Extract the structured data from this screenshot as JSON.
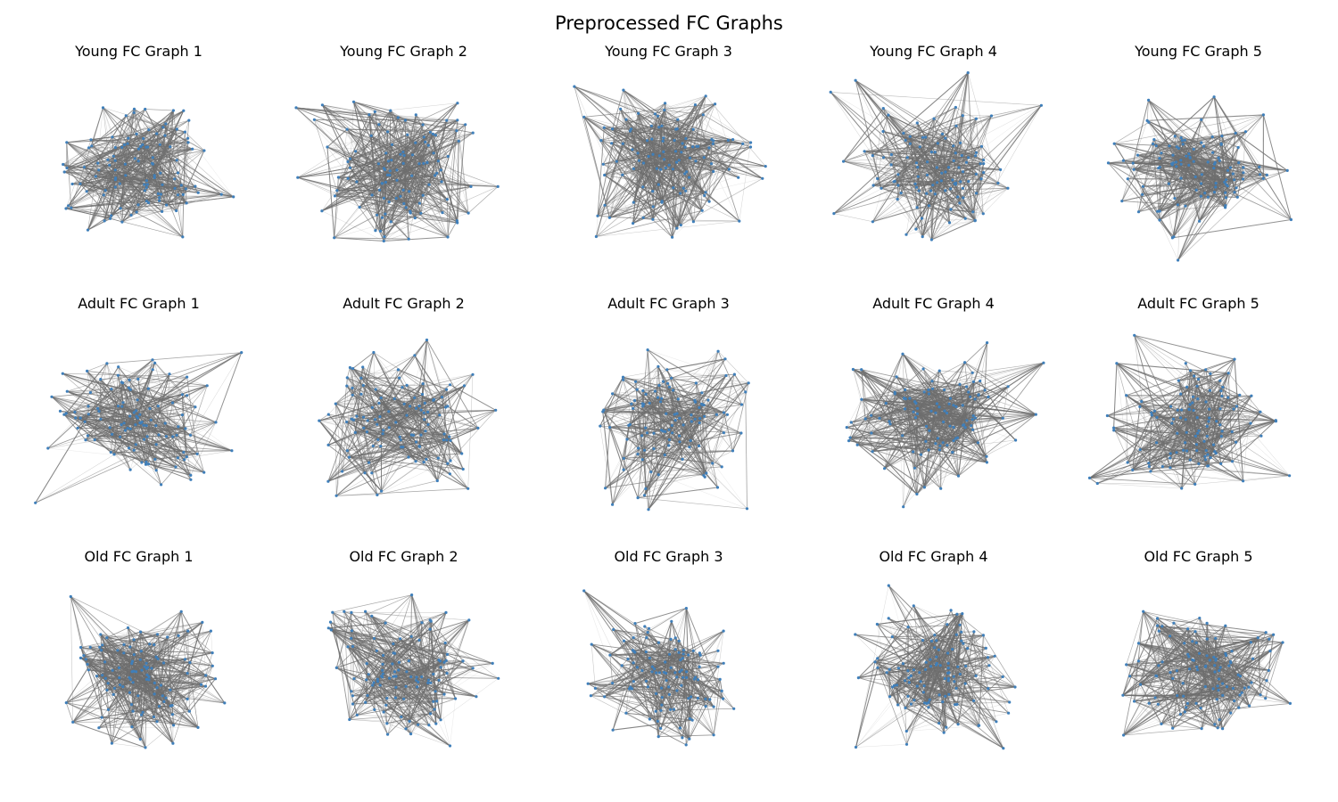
{
  "figure": {
    "title": "Preprocessed FC Graphs"
  },
  "colors": {
    "node": "#3f7fba",
    "edge": "#6e6e6e"
  },
  "panels": [
    {
      "title": "Young FC Graph 1",
      "density": 0.9
    },
    {
      "title": "Young FC Graph 2",
      "density": 0.9
    },
    {
      "title": "Young FC Graph 3",
      "density": 1.0
    },
    {
      "title": "Young FC Graph 4",
      "density": 0.8
    },
    {
      "title": "Young FC Graph 5",
      "density": 0.85
    },
    {
      "title": "Adult FC Graph 1",
      "density": 0.7
    },
    {
      "title": "Adult FC Graph 2",
      "density": 0.75
    },
    {
      "title": "Adult FC Graph 3",
      "density": 0.7
    },
    {
      "title": "Adult FC Graph 4",
      "density": 1.0
    },
    {
      "title": "Adult FC Graph 5",
      "density": 0.85
    },
    {
      "title": "Old FC Graph 1",
      "density": 1.0
    },
    {
      "title": "Old FC Graph 2",
      "density": 0.75
    },
    {
      "title": "Old FC Graph 3",
      "density": 0.7
    },
    {
      "title": "Old FC Graph 4",
      "density": 0.8
    },
    {
      "title": "Old FC Graph 5",
      "density": 0.95
    }
  ]
}
